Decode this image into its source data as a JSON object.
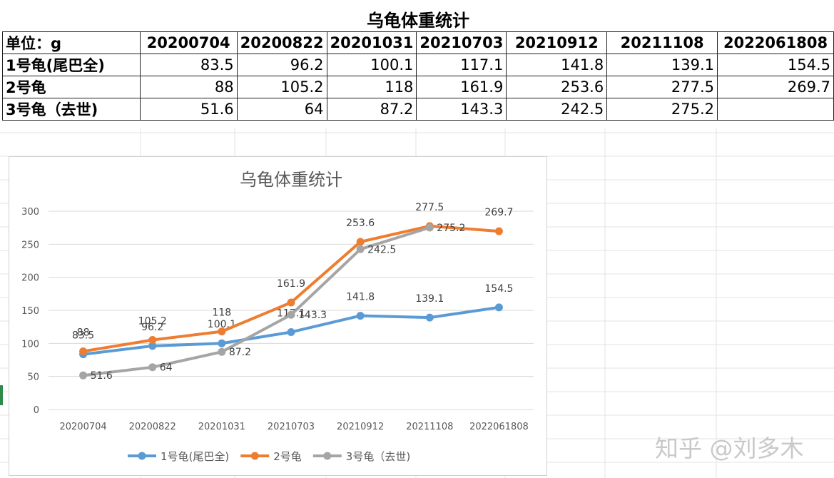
{
  "sheet": {
    "title": "乌龟体重统计",
    "unit_label": "单位：g",
    "columns": [
      "20200704",
      "20200822",
      "20201031",
      "20210703",
      "20210912",
      "20211108",
      "2022061808"
    ],
    "rows": [
      {
        "label": "1号龟(尾巴全)",
        "values": [
          "83.5",
          "96.2",
          "100.1",
          "117.1",
          "141.8",
          "139.1",
          "154.5"
        ]
      },
      {
        "label": "2号龟",
        "values": [
          "88",
          "105.2",
          "118",
          "161.9",
          "253.6",
          "277.5",
          "269.7"
        ]
      },
      {
        "label": "3号龟（去世)",
        "values": [
          "51.6",
          "64",
          "87.2",
          "143.3",
          "242.5",
          "275.2",
          ""
        ]
      }
    ]
  },
  "chart_data": {
    "type": "line",
    "title": "乌龟体重统计",
    "categories": [
      "20200704",
      "20200822",
      "20201031",
      "20210703",
      "20210912",
      "20211108",
      "2022061808"
    ],
    "ylim": [
      0,
      300
    ],
    "yticks": [
      0,
      50,
      100,
      150,
      200,
      250,
      300
    ],
    "grid": true,
    "legend_position": "bottom",
    "series": [
      {
        "name": "1号龟(尾巴全)",
        "color": "#5b9bd5",
        "values": [
          83.5,
          96.2,
          100.1,
          117.1,
          141.8,
          139.1,
          154.5
        ]
      },
      {
        "name": "2号龟",
        "color": "#ed7d31",
        "values": [
          88,
          105.2,
          118,
          161.9,
          253.6,
          277.5,
          269.7
        ]
      },
      {
        "name": "3号龟（去世)",
        "color": "#a5a5a5",
        "values": [
          51.6,
          64,
          87.2,
          143.3,
          242.5,
          275.2,
          null
        ]
      }
    ]
  },
  "watermark": "知乎 @刘多木"
}
